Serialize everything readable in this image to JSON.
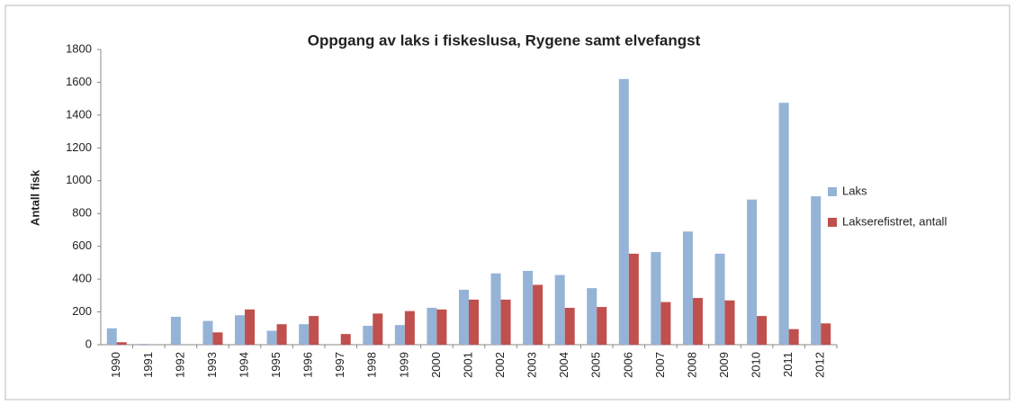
{
  "chart_data": {
    "type": "bar",
    "title": "Oppgang av laks i fiskeslusa, Rygene samt elvefangst",
    "y_label": "Antall fisk",
    "categories": [
      "1990",
      "1991",
      "1992",
      "1993",
      "1994",
      "1995",
      "1996",
      "1997",
      "1998",
      "1999",
      "2000",
      "2001",
      "2002",
      "2003",
      "2004",
      "2005",
      "2006",
      "2007",
      "2008",
      "2009",
      "2010",
      "2011",
      "2012"
    ],
    "series": [
      {
        "name": "Laks",
        "color": "#95b3d7",
        "values": [
          100,
          5,
          170,
          145,
          180,
          85,
          125,
          0,
          115,
          120,
          225,
          335,
          435,
          450,
          425,
          345,
          1620,
          565,
          690,
          555,
          885,
          1475,
          905
        ]
      },
      {
        "name": "Lakserefistret, antall",
        "color": "#c0504d",
        "values": [
          15,
          0,
          0,
          75,
          215,
          125,
          175,
          65,
          190,
          205,
          215,
          275,
          275,
          365,
          225,
          230,
          555,
          260,
          285,
          270,
          175,
          95,
          130
        ]
      }
    ],
    "ylim": [
      0,
      1800
    ],
    "yticks": [
      0,
      200,
      400,
      600,
      800,
      1000,
      1200,
      1400,
      1600,
      1800
    ],
    "grid": false,
    "legend": "right"
  }
}
